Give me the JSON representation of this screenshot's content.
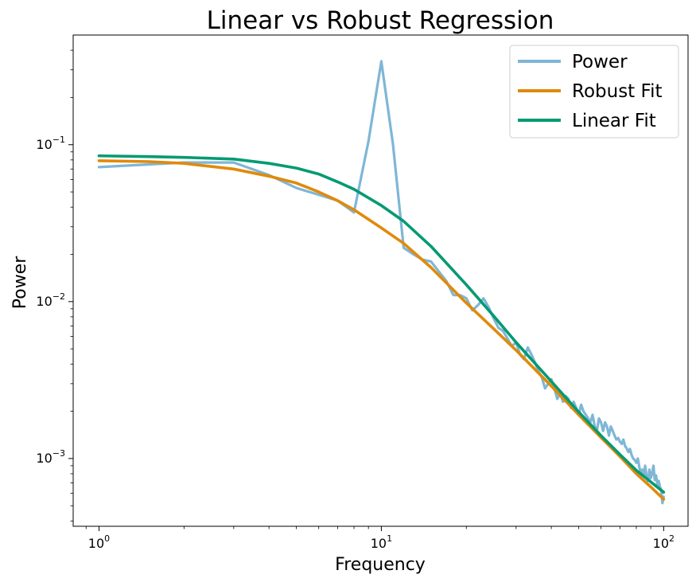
{
  "chart_data": {
    "type": "line",
    "title": "Linear vs Robust Regression",
    "xlabel": "Frequency",
    "ylabel": "Power",
    "xscale": "log",
    "yscale": "log",
    "xlim": [
      0.81,
      122
    ],
    "ylim": [
      0.00037,
      0.5
    ],
    "x_ticks": [
      {
        "base": "10",
        "exp": "0",
        "value": 1
      },
      {
        "base": "10",
        "exp": "1",
        "value": 10
      },
      {
        "base": "10",
        "exp": "2",
        "value": 100
      }
    ],
    "y_ticks": [
      {
        "base": "10",
        "exp": "−3",
        "value": 0.001
      },
      {
        "base": "10",
        "exp": "−2",
        "value": 0.01
      },
      {
        "base": "10",
        "exp": "−1",
        "value": 0.1
      }
    ],
    "legend": {
      "position": "top-right",
      "entries": [
        "Power",
        "Robust Fit",
        "Linear Fit"
      ]
    },
    "grid": false,
    "series": [
      {
        "name": "Power",
        "color": "#7fb6d6",
        "x": [
          1,
          2,
          3,
          4,
          5,
          6,
          7,
          8,
          9,
          10,
          11,
          12,
          13,
          14,
          15,
          16,
          17,
          18,
          19,
          20,
          21,
          22,
          23,
          24,
          25,
          26,
          27,
          28,
          29,
          30,
          31,
          32,
          33,
          34,
          35,
          36,
          37,
          38,
          39,
          40,
          41,
          42,
          43,
          44,
          45,
          46,
          47,
          48,
          49,
          50,
          51,
          52,
          53,
          54,
          55,
          56,
          57,
          58,
          59,
          60,
          61,
          62,
          63,
          64,
          65,
          66,
          67,
          68,
          69,
          70,
          71,
          72,
          73,
          74,
          75,
          76,
          77,
          78,
          79,
          80,
          81,
          82,
          83,
          84,
          85,
          86,
          87,
          88,
          89,
          90,
          91,
          92,
          93,
          94,
          95,
          96,
          97,
          98,
          99,
          100
        ],
        "y": [
          0.072,
          0.077,
          0.077,
          0.064,
          0.053,
          0.048,
          0.044,
          0.037,
          0.105,
          0.34,
          0.1,
          0.022,
          0.02,
          0.0185,
          0.018,
          0.0155,
          0.0135,
          0.011,
          0.011,
          0.0105,
          0.0088,
          0.0095,
          0.0105,
          0.0092,
          0.0078,
          0.0068,
          0.0065,
          0.0058,
          0.0052,
          0.0055,
          0.0046,
          0.0043,
          0.0051,
          0.0046,
          0.0041,
          0.0036,
          0.0033,
          0.0028,
          0.003,
          0.0032,
          0.0028,
          0.0024,
          0.0026,
          0.0023,
          0.0025,
          0.0024,
          0.0021,
          0.0023,
          0.0021,
          0.0019,
          0.0022,
          0.002,
          0.0019,
          0.0018,
          0.0017,
          0.0019,
          0.0016,
          0.0015,
          0.0018,
          0.0017,
          0.0015,
          0.0017,
          0.0016,
          0.0014,
          0.0016,
          0.0015,
          0.0014,
          0.00132,
          0.00135,
          0.00128,
          0.00124,
          0.00132,
          0.0012,
          0.00116,
          0.0011,
          0.00115,
          0.00105,
          0.001,
          0.00098,
          0.00094,
          0.001,
          0.00088,
          0.0008,
          0.00085,
          0.00079,
          0.0009,
          0.00076,
          0.00072,
          0.00085,
          0.00075,
          0.0008,
          0.0009,
          0.00073,
          0.00078,
          0.00068,
          0.00072,
          0.00066,
          0.00063,
          0.00052,
          0.00057
        ],
        "linewidth": 3.2
      },
      {
        "name": "Robust Fit",
        "color": "#e08a0b",
        "x": [
          1,
          1.5,
          2,
          3,
          4,
          5,
          6,
          7,
          8,
          10,
          12,
          15,
          20,
          25,
          30,
          40,
          50,
          60,
          70,
          80,
          90,
          100
        ],
        "y": [
          0.079,
          0.078,
          0.076,
          0.07,
          0.063,
          0.057,
          0.05,
          0.044,
          0.0385,
          0.0295,
          0.0235,
          0.0165,
          0.0098,
          0.0067,
          0.0049,
          0.0029,
          0.0019,
          0.00136,
          0.00103,
          0.0008,
          0.00066,
          0.00055
        ],
        "linewidth": 3.6
      },
      {
        "name": "Linear Fit",
        "color": "#069a72",
        "x": [
          1,
          1.5,
          2,
          3,
          4,
          5,
          6,
          7,
          8,
          10,
          12,
          15,
          20,
          25,
          30,
          40,
          50,
          60,
          70,
          80,
          90,
          100
        ],
        "y": [
          0.085,
          0.084,
          0.083,
          0.081,
          0.076,
          0.071,
          0.065,
          0.058,
          0.052,
          0.041,
          0.0325,
          0.0225,
          0.0128,
          0.0081,
          0.0055,
          0.0031,
          0.00198,
          0.0014,
          0.00106,
          0.00084,
          0.00071,
          0.00061
        ],
        "linewidth": 3.6
      }
    ]
  }
}
